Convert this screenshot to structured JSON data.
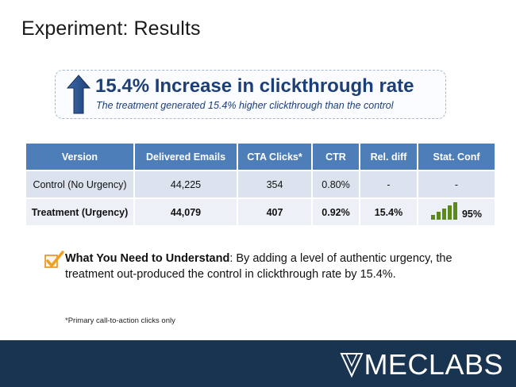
{
  "slide": {
    "title": "Experiment: Results"
  },
  "callout": {
    "headline": "15.4% Increase in clickthrough rate",
    "subtext": "The treatment generated 15.4% higher clickthrough than the control",
    "arrow_icon": "up-arrow-icon"
  },
  "table": {
    "headers": [
      "Version",
      "Delivered Emails",
      "CTA Clicks*",
      "CTR",
      "Rel. diff",
      "Stat. Conf"
    ],
    "rows": [
      {
        "version": "Control (No Urgency)",
        "delivered": "44,225",
        "clicks": "354",
        "ctr": "0.80%",
        "rel_diff": "-",
        "stat_conf": "-"
      },
      {
        "version": "Treatment (Urgency)",
        "delivered": "44,079",
        "clicks": "407",
        "ctr": "0.92%",
        "rel_diff": "15.4%",
        "stat_conf": "95%",
        "confidence_level": 0.95
      }
    ]
  },
  "takeaway": {
    "label": "What You Need to Understand",
    "text": ": By adding a level of authentic urgency, the treatment out-produced the control in clickthrough rate by 15.4%."
  },
  "footnote": "*Primary call-to-action clicks only",
  "footer": {
    "logo_text": "MECLABS"
  },
  "colors": {
    "header_blue": "#4d7eb8",
    "navy": "#193450",
    "headline": "#1d3f78",
    "check_orange": "#f0a020",
    "bar_green": "#5a8a1a"
  }
}
